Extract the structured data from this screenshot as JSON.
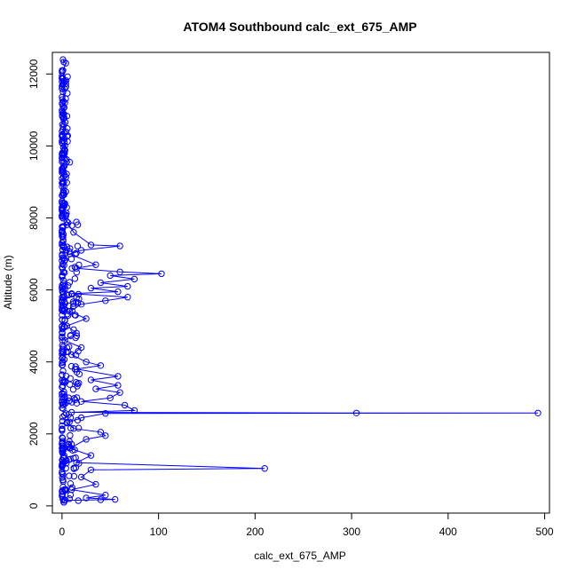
{
  "chart_data": {
    "type": "scatter",
    "title": "ATOM4 Southbound calc_ext_675_AMP",
    "xlabel": "calc_ext_675_AMP",
    "ylabel": "Altitude (m)",
    "xlim": [
      -10,
      505
    ],
    "ylim": [
      -200,
      12600
    ],
    "x_ticks": [
      0,
      100,
      200,
      300,
      400,
      500
    ],
    "x_tick_labels": [
      "0",
      "100",
      "200",
      "300",
      "400",
      "500"
    ],
    "y_ticks": [
      0,
      2000,
      4000,
      6000,
      8000,
      10000,
      12000
    ],
    "y_tick_labels": [
      "0",
      "2000",
      "4000",
      "6000",
      "8000",
      "10000",
      "12000"
    ],
    "grid": false,
    "marker": "open-circle",
    "connected_lines": true,
    "series_color": "#0000ff",
    "series": [
      {
        "points": [
          {
            "x": 1,
            "y": 12400
          },
          {
            "x": 2,
            "y": 12330
          },
          {
            "x": 4,
            "y": 12300
          },
          {
            "x": 1,
            "y": 12100
          },
          {
            "x": 2,
            "y": 11800
          },
          {
            "x": 1,
            "y": 11500
          },
          {
            "x": 3,
            "y": 11200
          },
          {
            "x": 1,
            "y": 10900
          },
          {
            "x": 2,
            "y": 10600
          },
          {
            "x": 1,
            "y": 10300
          },
          {
            "x": 3,
            "y": 10000
          },
          {
            "x": 2,
            "y": 9800
          },
          {
            "x": 8,
            "y": 9550
          },
          {
            "x": 1,
            "y": 9300
          },
          {
            "x": 2,
            "y": 9000
          },
          {
            "x": 1,
            "y": 8700
          },
          {
            "x": 3,
            "y": 8400
          },
          {
            "x": 2,
            "y": 8100
          },
          {
            "x": 5,
            "y": 7900
          },
          {
            "x": 12,
            "y": 7600
          },
          {
            "x": 30,
            "y": 7250
          },
          {
            "x": 60,
            "y": 7220
          },
          {
            "x": 20,
            "y": 7100
          },
          {
            "x": 8,
            "y": 7000
          },
          {
            "x": 35,
            "y": 6700
          },
          {
            "x": 15,
            "y": 6600
          },
          {
            "x": 60,
            "y": 6500
          },
          {
            "x": 103,
            "y": 6450
          },
          {
            "x": 50,
            "y": 6400
          },
          {
            "x": 75,
            "y": 6300
          },
          {
            "x": 40,
            "y": 6200
          },
          {
            "x": 68,
            "y": 6100
          },
          {
            "x": 30,
            "y": 6050
          },
          {
            "x": 58,
            "y": 5950
          },
          {
            "x": 10,
            "y": 5900
          },
          {
            "x": 68,
            "y": 5800
          },
          {
            "x": 45,
            "y": 5700
          },
          {
            "x": 20,
            "y": 5600
          },
          {
            "x": 8,
            "y": 5400
          },
          {
            "x": 25,
            "y": 5200
          },
          {
            "x": 5,
            "y": 5000
          },
          {
            "x": 15,
            "y": 4800
          },
          {
            "x": 3,
            "y": 4600
          },
          {
            "x": 20,
            "y": 4400
          },
          {
            "x": 10,
            "y": 4200
          },
          {
            "x": 25,
            "y": 4000
          },
          {
            "x": 40,
            "y": 3900
          },
          {
            "x": 15,
            "y": 3800
          },
          {
            "x": 58,
            "y": 3600
          },
          {
            "x": 30,
            "y": 3500
          },
          {
            "x": 58,
            "y": 3350
          },
          {
            "x": 35,
            "y": 3250
          },
          {
            "x": 60,
            "y": 3150
          },
          {
            "x": 50,
            "y": 3000
          },
          {
            "x": 20,
            "y": 2900
          },
          {
            "x": 65,
            "y": 2800
          },
          {
            "x": 75,
            "y": 2650
          },
          {
            "x": 10,
            "y": 2600
          },
          {
            "x": 305,
            "y": 2580
          },
          {
            "x": 493,
            "y": 2580
          },
          {
            "x": 45,
            "y": 2570
          },
          {
            "x": 20,
            "y": 2450
          },
          {
            "x": 5,
            "y": 2300
          },
          {
            "x": 12,
            "y": 2150
          },
          {
            "x": 40,
            "y": 2050
          },
          {
            "x": 45,
            "y": 1950
          },
          {
            "x": 25,
            "y": 1850
          },
          {
            "x": 8,
            "y": 1600
          },
          {
            "x": 30,
            "y": 1400
          },
          {
            "x": 15,
            "y": 1200
          },
          {
            "x": 210,
            "y": 1040
          },
          {
            "x": 30,
            "y": 1000
          },
          {
            "x": 20,
            "y": 800
          },
          {
            "x": 35,
            "y": 600
          },
          {
            "x": 10,
            "y": 450
          },
          {
            "x": 45,
            "y": 300
          },
          {
            "x": 25,
            "y": 220
          },
          {
            "x": 55,
            "y": 180
          },
          {
            "x": 40,
            "y": 170
          },
          {
            "x": 2,
            "y": 150
          }
        ]
      }
    ]
  }
}
